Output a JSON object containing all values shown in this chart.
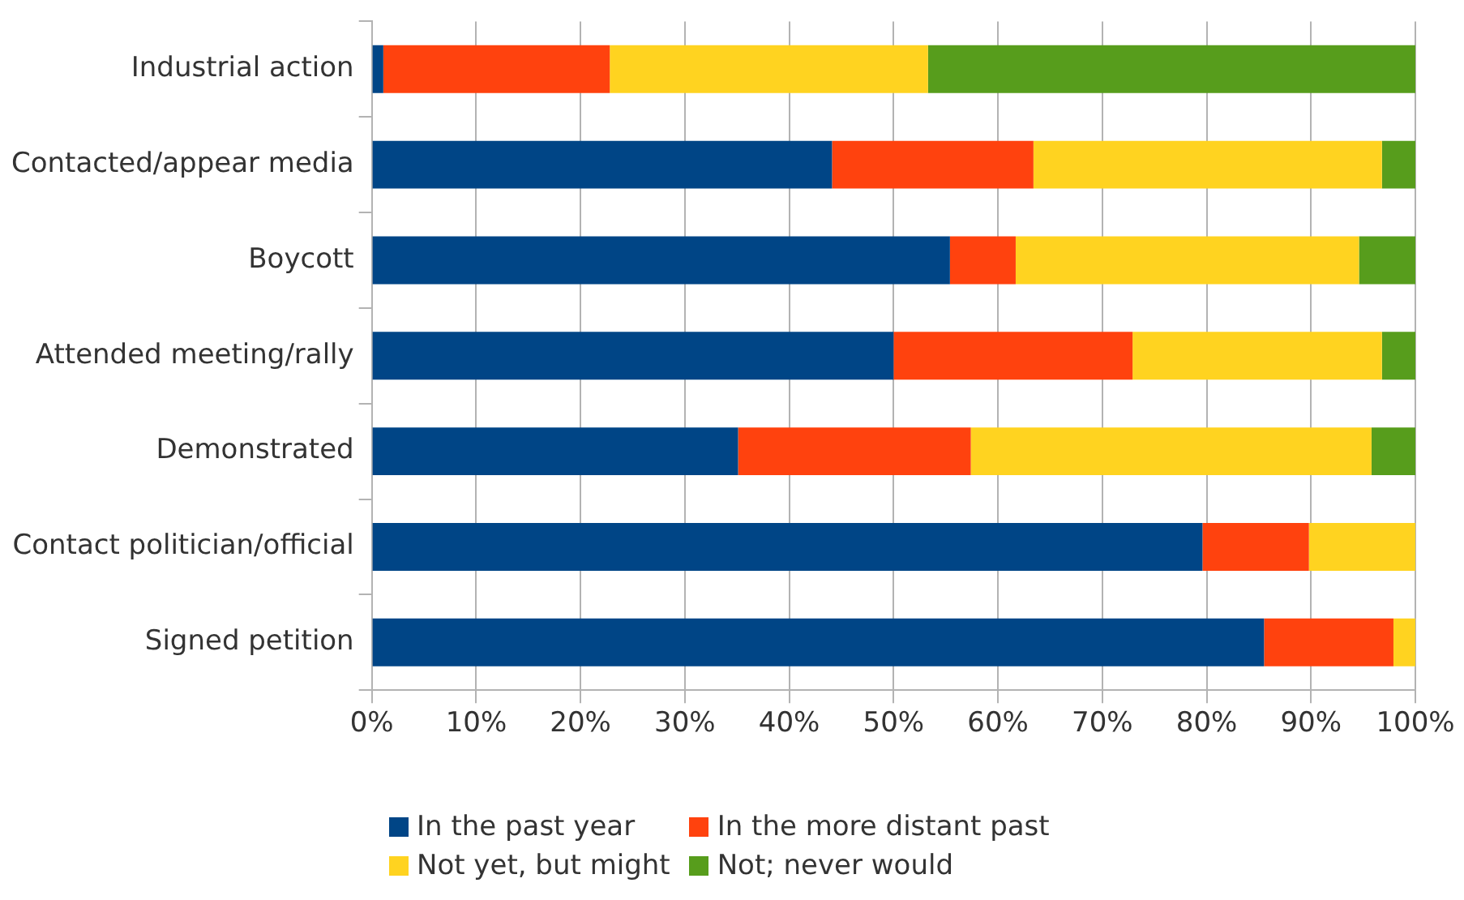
{
  "chart_data": {
    "type": "bar",
    "orientation": "horizontal",
    "stacked": true,
    "categories": [
      "Industrial action",
      "Contacted/appear media",
      "Boycott",
      "Attended meeting/rally",
      "Demonstrated",
      "Contact politician/official",
      "Signed petition"
    ],
    "series": [
      {
        "name": "In the past year",
        "color": "#004586",
        "values": [
          1.1,
          44.1,
          55.4,
          50,
          35.1,
          79.6,
          85.5
        ]
      },
      {
        "name": "In the more distant past",
        "color": "#ff420e",
        "values": [
          21.7,
          19.3,
          6.3,
          22.9,
          22.3,
          10.2,
          12.4
        ]
      },
      {
        "name": "Not yet, but might",
        "color": "#ffd320",
        "values": [
          30.5,
          33.4,
          32.9,
          23.9,
          38.4,
          10.2,
          2.1
        ]
      },
      {
        "name": "Not; never would",
        "color": "#579d1c",
        "values": [
          46.7,
          3.2,
          5.4,
          3.2,
          4.2,
          0,
          0
        ]
      }
    ],
    "xlim": [
      0,
      100
    ],
    "xticks": [
      {
        "value": 0,
        "label": "0%"
      },
      {
        "value": 10,
        "label": "10%"
      },
      {
        "value": 20,
        "label": "20%"
      },
      {
        "value": 30,
        "label": "30%"
      },
      {
        "value": 40,
        "label": "40%"
      },
      {
        "value": 50,
        "label": "50%"
      },
      {
        "value": 60,
        "label": "60%"
      },
      {
        "value": 70,
        "label": "70%"
      },
      {
        "value": 80,
        "label": "80%"
      },
      {
        "value": 90,
        "label": "90%"
      },
      {
        "value": 100,
        "label": "100%"
      }
    ],
    "grid": "x",
    "legend": "bottom"
  }
}
